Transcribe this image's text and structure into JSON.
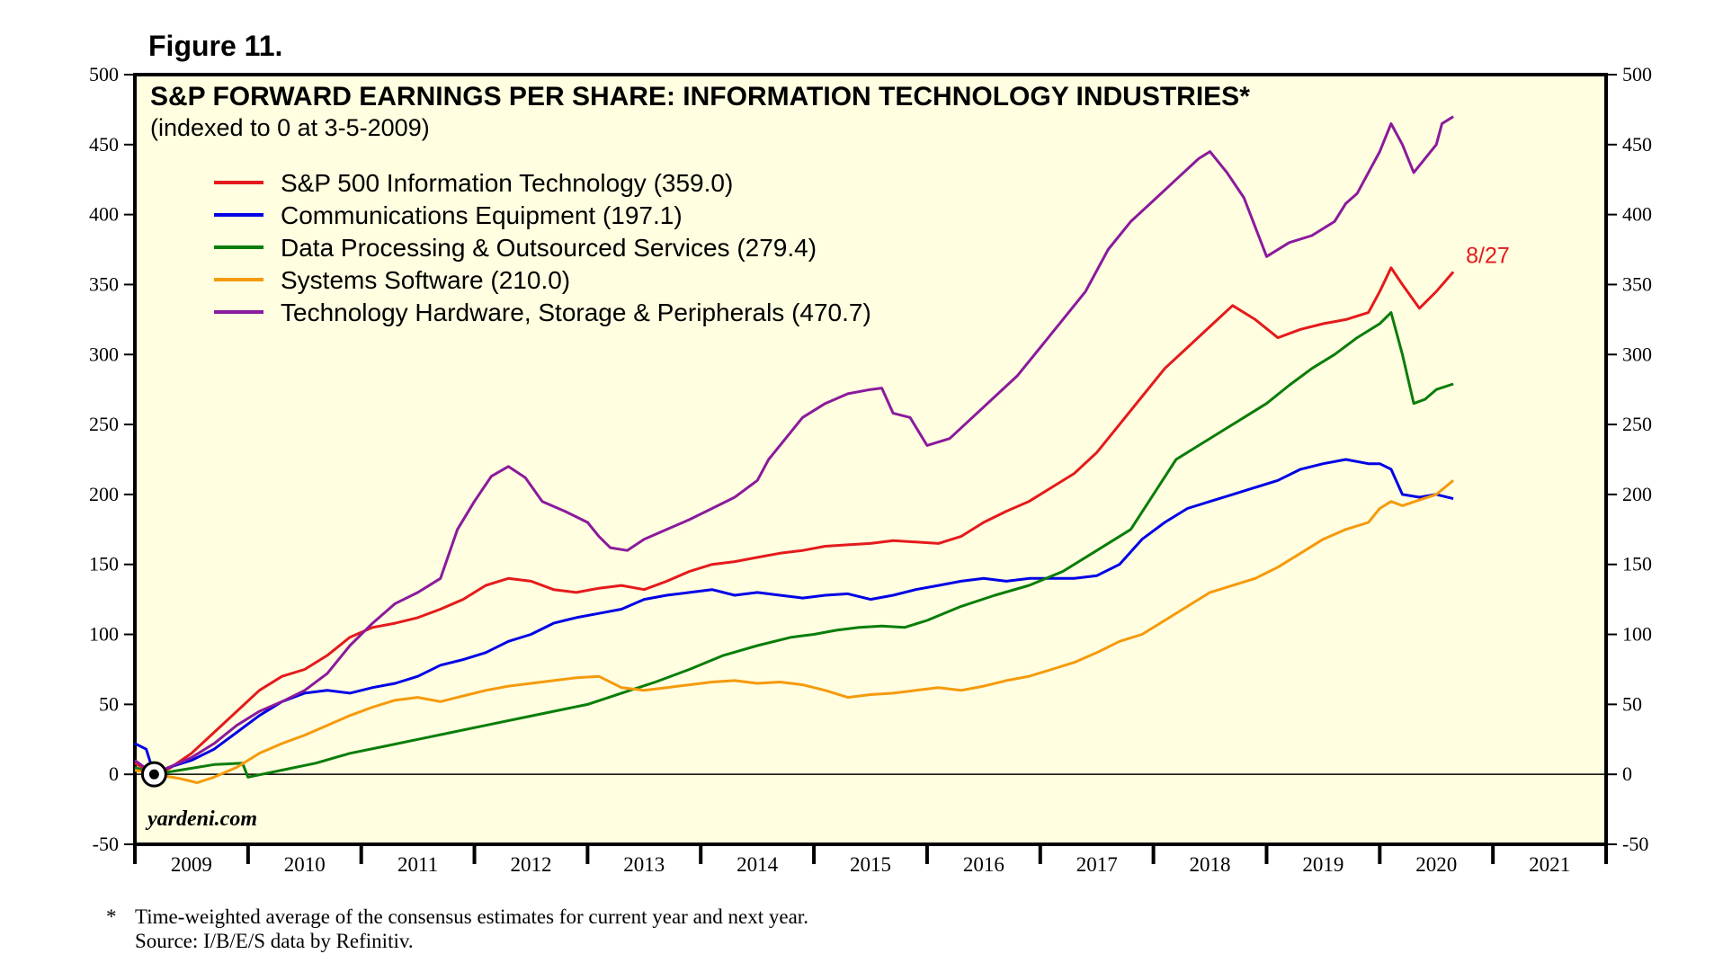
{
  "figure_label": "Figure 11.",
  "watermark": "yardeni.com",
  "footnote": {
    "marker": "*",
    "line1": "Time-weighted average of the consensus estimates for current year and next year.",
    "line2": "Source: I/B/E/S data by Refinitiv."
  },
  "chart_data": {
    "type": "line",
    "title": "S&P FORWARD EARNINGS PER SHARE: INFORMATION TECHNOLOGY INDUSTRIES*",
    "subtitle": "(indexed to 0 at 3-5-2009)",
    "ylim": [
      -50,
      500
    ],
    "yticks": [
      "500",
      "450",
      "400",
      "350",
      "300",
      "250",
      "200",
      "150",
      "100",
      "50",
      "0",
      "-50"
    ],
    "xlim": [
      2009.0,
      2022.0
    ],
    "xticks": [
      "2009",
      "2010",
      "2011",
      "2012",
      "2013",
      "2014",
      "2015",
      "2016",
      "2017",
      "2018",
      "2019",
      "2020",
      "2021"
    ],
    "baseline": 0,
    "baseline_marker_x": 2009.17,
    "end_label": "8/27",
    "end_label_color": "#e41a1c",
    "legend_position": "top-left",
    "series": [
      {
        "name": "S&P 500 Information Technology (359.0)",
        "color": "#e41a1c",
        "x": [
          2009.0,
          2009.17,
          2009.3,
          2009.5,
          2009.7,
          2009.9,
          2010.1,
          2010.3,
          2010.5,
          2010.7,
          2010.9,
          2011.1,
          2011.3,
          2011.5,
          2011.7,
          2011.9,
          2012.1,
          2012.3,
          2012.5,
          2012.7,
          2012.9,
          2013.1,
          2013.3,
          2013.5,
          2013.7,
          2013.9,
          2014.1,
          2014.3,
          2014.5,
          2014.7,
          2014.9,
          2015.1,
          2015.3,
          2015.5,
          2015.7,
          2015.9,
          2016.1,
          2016.3,
          2016.5,
          2016.7,
          2016.9,
          2017.1,
          2017.3,
          2017.5,
          2017.7,
          2017.9,
          2018.1,
          2018.3,
          2018.5,
          2018.7,
          2018.9,
          2019.1,
          2019.3,
          2019.5,
          2019.7,
          2019.9,
          2020.0,
          2020.1,
          2020.2,
          2020.35,
          2020.5,
          2020.65
        ],
        "values": [
          8,
          0,
          4,
          15,
          30,
          45,
          60,
          70,
          75,
          85,
          98,
          105,
          108,
          112,
          118,
          125,
          135,
          140,
          138,
          132,
          130,
          133,
          135,
          132,
          138,
          145,
          150,
          152,
          155,
          158,
          160,
          163,
          164,
          165,
          167,
          166,
          165,
          170,
          180,
          188,
          195,
          205,
          215,
          230,
          250,
          270,
          290,
          305,
          320,
          335,
          325,
          312,
          318,
          322,
          325,
          330,
          345,
          362,
          350,
          333,
          345,
          359
        ]
      },
      {
        "name": "Communications Equipment (197.1)",
        "color": "#0000e6",
        "x": [
          2009.0,
          2009.1,
          2009.17,
          2009.3,
          2009.5,
          2009.7,
          2009.9,
          2010.1,
          2010.3,
          2010.5,
          2010.7,
          2010.9,
          2011.1,
          2011.3,
          2011.5,
          2011.7,
          2011.9,
          2012.1,
          2012.3,
          2012.5,
          2012.7,
          2012.9,
          2013.1,
          2013.3,
          2013.5,
          2013.7,
          2013.9,
          2014.1,
          2014.3,
          2014.5,
          2014.7,
          2014.9,
          2015.1,
          2015.3,
          2015.5,
          2015.7,
          2015.9,
          2016.1,
          2016.3,
          2016.5,
          2016.7,
          2016.9,
          2017.1,
          2017.3,
          2017.5,
          2017.7,
          2017.9,
          2018.1,
          2018.3,
          2018.5,
          2018.7,
          2018.9,
          2019.1,
          2019.3,
          2019.5,
          2019.7,
          2019.9,
          2020.0,
          2020.1,
          2020.2,
          2020.35,
          2020.5,
          2020.65
        ],
        "values": [
          22,
          18,
          0,
          5,
          10,
          18,
          30,
          42,
          52,
          58,
          60,
          58,
          62,
          65,
          70,
          78,
          82,
          87,
          95,
          100,
          108,
          112,
          115,
          118,
          125,
          128,
          130,
          132,
          128,
          130,
          128,
          126,
          128,
          129,
          125,
          128,
          132,
          135,
          138,
          140,
          138,
          140,
          140,
          140,
          142,
          150,
          168,
          180,
          190,
          195,
          200,
          205,
          210,
          218,
          222,
          225,
          222,
          222,
          218,
          200,
          198,
          200,
          197
        ]
      },
      {
        "name": "Data Processing & Outsourced Services (279.4)",
        "color": "#0a7d0a",
        "x": [
          2009.0,
          2009.17,
          2009.4,
          2009.7,
          2009.95,
          2010.0,
          2010.3,
          2010.6,
          2010.9,
          2011.2,
          2011.5,
          2011.8,
          2012.1,
          2012.4,
          2012.7,
          2013.0,
          2013.3,
          2013.6,
          2013.9,
          2014.2,
          2014.5,
          2014.8,
          2015.0,
          2015.2,
          2015.4,
          2015.6,
          2015.8,
          2016.0,
          2016.3,
          2016.6,
          2016.9,
          2017.2,
          2017.5,
          2017.8,
          2018.0,
          2018.2,
          2018.4,
          2018.6,
          2018.8,
          2019.0,
          2019.2,
          2019.4,
          2019.6,
          2019.8,
          2020.0,
          2020.1,
          2020.2,
          2020.3,
          2020.4,
          2020.5,
          2020.65
        ],
        "values": [
          5,
          0,
          3,
          7,
          8,
          -2,
          3,
          8,
          15,
          20,
          25,
          30,
          35,
          40,
          45,
          50,
          58,
          66,
          75,
          85,
          92,
          98,
          100,
          103,
          105,
          106,
          105,
          110,
          120,
          128,
          135,
          145,
          160,
          175,
          200,
          225,
          235,
          245,
          255,
          265,
          278,
          290,
          300,
          312,
          322,
          330,
          300,
          265,
          268,
          275,
          279
        ]
      },
      {
        "name": "Systems Software (210.0)",
        "color": "#f59a0c",
        "x": [
          2009.0,
          2009.17,
          2009.4,
          2009.55,
          2009.7,
          2009.9,
          2010.1,
          2010.3,
          2010.5,
          2010.7,
          2010.9,
          2011.1,
          2011.3,
          2011.5,
          2011.7,
          2011.9,
          2012.1,
          2012.3,
          2012.5,
          2012.7,
          2012.9,
          2013.1,
          2013.3,
          2013.5,
          2013.7,
          2013.9,
          2014.1,
          2014.3,
          2014.5,
          2014.7,
          2014.9,
          2015.1,
          2015.3,
          2015.5,
          2015.7,
          2015.9,
          2016.1,
          2016.3,
          2016.5,
          2016.7,
          2016.9,
          2017.1,
          2017.3,
          2017.5,
          2017.7,
          2017.9,
          2018.1,
          2018.3,
          2018.5,
          2018.7,
          2018.9,
          2019.1,
          2019.3,
          2019.5,
          2019.7,
          2019.9,
          2020.0,
          2020.1,
          2020.2,
          2020.35,
          2020.5,
          2020.65
        ],
        "values": [
          3,
          0,
          -3,
          -6,
          -2,
          5,
          15,
          22,
          28,
          35,
          42,
          48,
          53,
          55,
          52,
          56,
          60,
          63,
          65,
          67,
          69,
          70,
          62,
          60,
          62,
          64,
          66,
          67,
          65,
          66,
          64,
          60,
          55,
          57,
          58,
          60,
          62,
          60,
          63,
          67,
          70,
          75,
          80,
          87,
          95,
          100,
          110,
          120,
          130,
          135,
          140,
          148,
          158,
          168,
          175,
          180,
          190,
          195,
          192,
          196,
          200,
          210
        ]
      },
      {
        "name": "Technology Hardware, Storage & Peripherals (470.7)",
        "color": "#8b1a9c",
        "x": [
          2009.0,
          2009.17,
          2009.3,
          2009.5,
          2009.7,
          2009.9,
          2010.1,
          2010.3,
          2010.5,
          2010.7,
          2010.9,
          2011.1,
          2011.3,
          2011.5,
          2011.7,
          2011.85,
          2012.0,
          2012.15,
          2012.3,
          2012.45,
          2012.6,
          2012.8,
          2013.0,
          2013.1,
          2013.2,
          2013.35,
          2013.5,
          2013.7,
          2013.9,
          2014.1,
          2014.3,
          2014.5,
          2014.6,
          2014.75,
          2014.9,
          2015.1,
          2015.3,
          2015.5,
          2015.6,
          2015.7,
          2015.85,
          2016.0,
          2016.2,
          2016.4,
          2016.6,
          2016.8,
          2017.0,
          2017.2,
          2017.4,
          2017.6,
          2017.8,
          2018.0,
          2018.2,
          2018.4,
          2018.5,
          2018.65,
          2018.8,
          2019.0,
          2019.2,
          2019.4,
          2019.6,
          2019.7,
          2019.8,
          2019.9,
          2020.0,
          2020.1,
          2020.2,
          2020.3,
          2020.4,
          2020.5,
          2020.55,
          2020.65
        ],
        "values": [
          10,
          0,
          5,
          12,
          22,
          35,
          45,
          52,
          60,
          72,
          92,
          108,
          122,
          130,
          140,
          175,
          195,
          213,
          220,
          212,
          195,
          188,
          180,
          170,
          162,
          160,
          168,
          175,
          182,
          190,
          198,
          210,
          225,
          240,
          255,
          265,
          272,
          275,
          276,
          258,
          255,
          235,
          240,
          255,
          270,
          285,
          305,
          325,
          345,
          375,
          395,
          410,
          425,
          440,
          445,
          430,
          412,
          370,
          380,
          385,
          395,
          408,
          415,
          430,
          445,
          465,
          450,
          430,
          440,
          450,
          465,
          470
        ]
      }
    ]
  }
}
